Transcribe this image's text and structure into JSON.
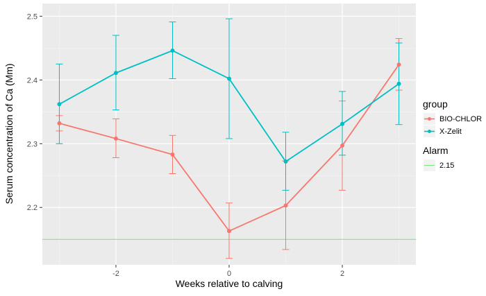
{
  "chart_data": {
    "type": "line",
    "xlabel": "Weeks relative to calving",
    "ylabel": "Serum concentration of Ca (Mm)",
    "xlim": [
      -3.3,
      3.3
    ],
    "ylim": [
      2.11,
      2.52
    ],
    "x_ticks": [
      -2,
      0,
      2
    ],
    "x_tick_labels": [
      "-2",
      "0",
      "2"
    ],
    "y_ticks": [
      2.2,
      2.3,
      2.4,
      2.5
    ],
    "y_tick_labels": [
      "2.2",
      "2.3",
      "2.4",
      "2.5"
    ],
    "grid": true,
    "legend_position": "right",
    "legend": {
      "group_title": "group",
      "alarm_title": "Alarm",
      "alarm_label": "2.15"
    },
    "x": [
      -3,
      -2,
      -1,
      0,
      1,
      2,
      3
    ],
    "series": [
      {
        "name": "BIO-CHLOR",
        "color": "#f8766d",
        "values": [
          2.332,
          2.308,
          2.283,
          2.163,
          2.203,
          2.297,
          2.424
        ],
        "lower": [
          2.32,
          2.278,
          2.253,
          2.12,
          2.134,
          2.227,
          2.384
        ],
        "upper": [
          2.344,
          2.339,
          2.313,
          2.207,
          2.273,
          2.367,
          2.465
        ]
      },
      {
        "name": "X-Zelit",
        "color": "#00bfc4",
        "values": [
          2.362,
          2.411,
          2.446,
          2.402,
          2.272,
          2.331,
          2.394
        ],
        "lower": [
          2.3,
          2.353,
          2.402,
          2.308,
          2.227,
          2.282,
          2.33
        ],
        "upper": [
          2.425,
          2.47,
          2.491,
          2.496,
          2.318,
          2.382,
          2.458
        ]
      }
    ],
    "alarm_line": {
      "y": 2.15,
      "color": "#7ae37a"
    }
  }
}
